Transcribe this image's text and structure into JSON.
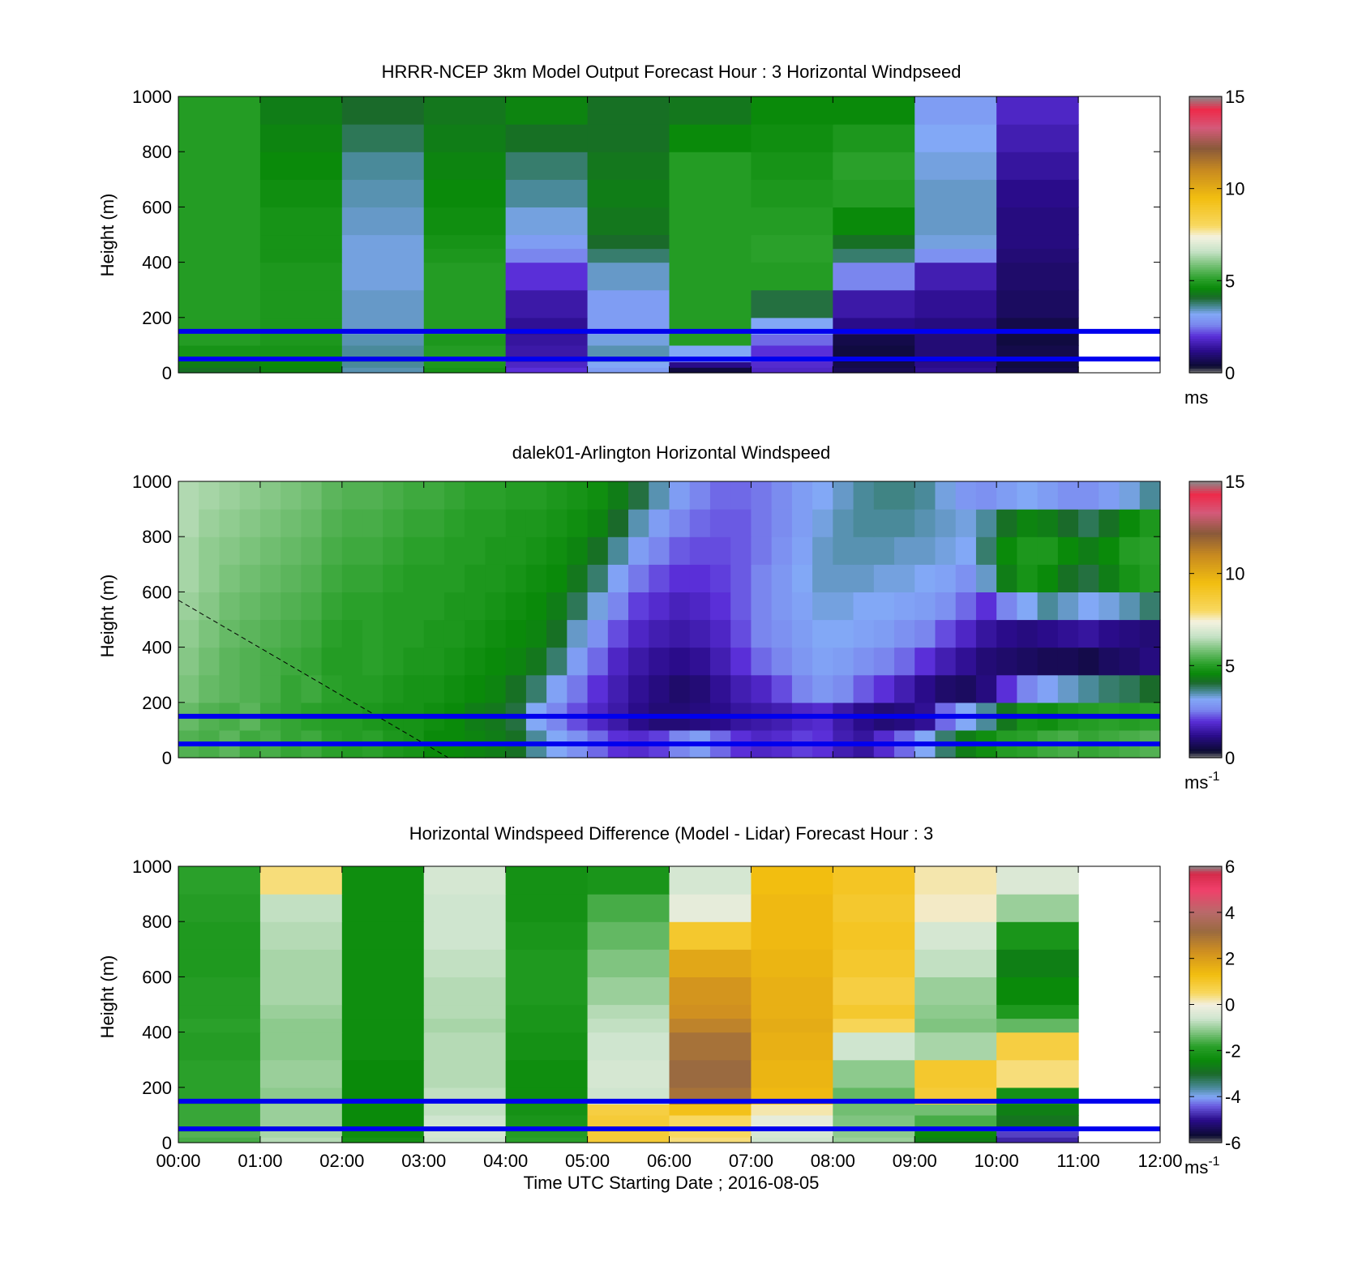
{
  "figure": {
    "xlabel": "Time UTC  Starting Date ; 2016-08-05",
    "time_ticks": [
      "00:00",
      "01:00",
      "02:00",
      "03:00",
      "04:00",
      "05:00",
      "06:00",
      "07:00",
      "08:00",
      "09:00",
      "10:00",
      "11:00",
      "12:00"
    ],
    "height_ticks": [
      "0",
      "200",
      "400",
      "600",
      "800",
      "1000"
    ],
    "reference_lines_m": [
      50,
      150
    ],
    "reference_line_color": "#0000ee"
  },
  "chart_data": [
    {
      "type": "heatmap",
      "title": "HRRR-NCEP 3km Model Output   Forecast Hour : 3 Horizontal Windpseed",
      "ylabel": "Height (m)",
      "xlim_hours": [
        0,
        12
      ],
      "ylim": [
        0,
        1000
      ],
      "colorbar": {
        "unit": "ms",
        "unit_sup": "",
        "range": [
          0,
          15
        ],
        "ticks": [
          "0",
          "5",
          "10",
          "15"
        ]
      },
      "height_levels_m": [
        0,
        20,
        40,
        60,
        100,
        140,
        200,
        300,
        400,
        450,
        500,
        600,
        700,
        800,
        900,
        1000
      ],
      "time_bins_hours": [
        0,
        1,
        2,
        3,
        4,
        5,
        6,
        7,
        8,
        9,
        10,
        11
      ],
      "bin_width_hours": 1,
      "values": [
        [
          4.2,
          4.5,
          3.5,
          4.8,
          2.0,
          3.0,
          0.5,
          1.8,
          0.7,
          1.3,
          0.6
        ],
        [
          4.4,
          4.6,
          3.6,
          4.9,
          1.8,
          3.2,
          1.2,
          1.9,
          0.6,
          1.2,
          0.5
        ],
        [
          4.6,
          4.7,
          3.7,
          5.0,
          1.6,
          3.4,
          2.6,
          2.0,
          0.5,
          1.1,
          0.6
        ],
        [
          4.8,
          4.8,
          3.6,
          5.0,
          1.5,
          3.5,
          3.2,
          2.0,
          0.5,
          1.0,
          0.6
        ],
        [
          5.0,
          4.9,
          3.5,
          4.9,
          1.4,
          3.3,
          5.0,
          2.4,
          0.6,
          1.0,
          0.5
        ],
        [
          5.0,
          4.9,
          3.4,
          5.0,
          1.3,
          3.0,
          5.0,
          3.2,
          1.2,
          1.1,
          0.6
        ],
        [
          5.0,
          4.9,
          3.4,
          5.0,
          1.5,
          3.0,
          5.0,
          4.0,
          1.5,
          1.3,
          0.8
        ],
        [
          5.0,
          4.9,
          3.3,
          5.0,
          2.0,
          3.4,
          5.0,
          5.0,
          2.6,
          1.6,
          0.9
        ],
        [
          5.0,
          4.8,
          3.3,
          4.9,
          2.6,
          3.8,
          5.0,
          5.1,
          3.8,
          2.8,
          1.0
        ],
        [
          5.0,
          4.8,
          3.3,
          4.8,
          3.0,
          4.1,
          5.0,
          5.1,
          4.2,
          3.3,
          1.1
        ],
        [
          5.0,
          4.8,
          3.4,
          4.7,
          3.3,
          4.3,
          5.0,
          5.0,
          4.6,
          3.4,
          1.1
        ],
        [
          5.0,
          4.7,
          3.5,
          4.6,
          3.6,
          4.4,
          5.0,
          4.9,
          5.0,
          3.4,
          1.2
        ],
        [
          5.0,
          4.6,
          3.6,
          4.5,
          3.8,
          4.3,
          5.0,
          4.8,
          5.1,
          3.3,
          1.4
        ],
        [
          5.0,
          4.5,
          3.9,
          4.4,
          4.2,
          4.2,
          4.6,
          4.7,
          4.9,
          3.2,
          1.6
        ],
        [
          5.0,
          4.4,
          4.1,
          4.3,
          4.5,
          4.2,
          4.3,
          4.6,
          4.6,
          3.0,
          1.8
        ]
      ],
      "empty_after_hours": 11
    },
    {
      "type": "heatmap",
      "title": "dalek01-Arlington  Horizontal Windspeed",
      "ylabel": "Height (m)",
      "xlim_hours": [
        0,
        12
      ],
      "ylim": [
        0,
        1000
      ],
      "colorbar": {
        "unit": "ms",
        "unit_sup": "-1",
        "range": [
          0,
          15
        ],
        "ticks": [
          "0",
          "5",
          "10",
          "15"
        ]
      },
      "note_values": "height x time grid",
      "time_bins_hours": [
        0,
        0.25,
        0.5,
        0.75,
        1,
        1.25,
        1.5,
        1.75,
        2,
        2.25,
        2.5,
        2.75,
        3,
        3.25,
        3.5,
        3.75,
        4,
        4.25,
        4.5,
        4.75,
        5,
        5.25,
        5.5,
        5.75,
        6,
        6.25,
        6.5,
        6.75,
        7,
        7.25,
        7.5,
        7.75,
        8,
        8.25,
        8.5,
        8.75,
        9,
        9.25,
        9.5,
        9.75,
        10,
        10.25,
        10.5,
        10.75,
        11,
        11.25,
        11.5,
        11.75
      ],
      "bin_width_hours": 0.25,
      "height_levels_m": [
        0,
        100,
        200,
        300,
        400,
        500,
        600,
        700,
        800,
        900,
        1000
      ],
      "values": [
        [
          5.5,
          5.4,
          5.6,
          5.3,
          5.4,
          5.2,
          5.3,
          5.1,
          5.0,
          5.1,
          4.9,
          4.8,
          4.6,
          4.6,
          4.5,
          4.4,
          4.2,
          3.6,
          3.2,
          2.8,
          2.4,
          2.0,
          1.9,
          2.1,
          2.6,
          3.0,
          2.4,
          2.0,
          1.8,
          1.9,
          2.1,
          2.0,
          1.6,
          1.4,
          1.9,
          2.4,
          3.2,
          3.8,
          4.4,
          4.7,
          5.0,
          5.1,
          5.3,
          5.4,
          5.2,
          5.3,
          5.4,
          5.5
        ],
        [
          5.7,
          5.5,
          5.4,
          5.6,
          5.3,
          5.2,
          5.1,
          5.0,
          5.0,
          4.9,
          4.8,
          4.8,
          4.7,
          4.6,
          4.4,
          4.3,
          4.0,
          3.2,
          2.6,
          2.2,
          1.8,
          1.5,
          1.2,
          1.0,
          1.0,
          1.1,
          1.2,
          1.4,
          1.5,
          1.6,
          1.8,
          1.9,
          1.5,
          1.2,
          1.0,
          1.1,
          1.3,
          2.4,
          3.2,
          3.6,
          4.3,
          4.8,
          4.7,
          4.9,
          5.0,
          5.1,
          5.0,
          5.1
        ],
        [
          5.9,
          5.7,
          5.6,
          5.5,
          5.4,
          5.2,
          5.3,
          5.1,
          5.0,
          5.0,
          4.9,
          4.8,
          4.8,
          4.7,
          4.6,
          4.5,
          4.2,
          3.8,
          3.1,
          2.5,
          2.0,
          1.6,
          1.3,
          1.1,
          0.9,
          1.0,
          1.3,
          1.6,
          1.8,
          2.2,
          2.6,
          2.9,
          2.7,
          2.3,
          2.0,
          1.6,
          1.2,
          0.9,
          0.8,
          1.1,
          2.0,
          2.6,
          3.1,
          3.4,
          3.6,
          3.8,
          3.9,
          4.1
        ],
        [
          6.0,
          5.8,
          5.6,
          5.5,
          5.4,
          5.3,
          5.2,
          5.0,
          5.0,
          5.1,
          5.0,
          4.9,
          4.9,
          4.8,
          4.7,
          4.6,
          4.5,
          4.3,
          3.8,
          3.0,
          2.4,
          1.8,
          1.5,
          1.3,
          1.2,
          1.3,
          1.6,
          2.0,
          2.4,
          2.6,
          2.9,
          3.1,
          3.0,
          2.8,
          2.6,
          2.4,
          2.0,
          1.6,
          1.3,
          1.0,
          0.9,
          0.8,
          0.7,
          0.7,
          0.6,
          0.8,
          0.9,
          1.1
        ],
        [
          6.1,
          5.9,
          5.7,
          5.6,
          5.5,
          5.4,
          5.3,
          5.1,
          5.0,
          5.1,
          5.0,
          5.0,
          4.9,
          4.9,
          4.8,
          4.7,
          4.6,
          4.5,
          4.2,
          3.4,
          2.8,
          2.2,
          1.8,
          1.6,
          1.5,
          1.6,
          1.8,
          2.2,
          2.6,
          2.8,
          3.0,
          3.2,
          3.2,
          3.1,
          3.0,
          2.8,
          2.6,
          2.2,
          1.8,
          1.4,
          1.2,
          1.1,
          1.2,
          1.3,
          1.4,
          1.2,
          1.1,
          1.0
        ],
        [
          6.2,
          6.0,
          5.8,
          5.7,
          5.6,
          5.5,
          5.4,
          5.2,
          5.1,
          5.1,
          5.0,
          5.0,
          5.0,
          4.9,
          4.9,
          4.8,
          4.7,
          4.6,
          4.4,
          3.9,
          3.3,
          2.6,
          2.1,
          1.9,
          1.7,
          1.8,
          2.0,
          2.3,
          2.6,
          2.9,
          3.1,
          3.3,
          3.3,
          3.2,
          3.2,
          3.1,
          3.0,
          2.8,
          2.4,
          2.0,
          2.6,
          3.2,
          3.6,
          3.4,
          3.2,
          3.3,
          3.5,
          3.8
        ],
        [
          6.3,
          6.1,
          5.9,
          5.8,
          5.7,
          5.6,
          5.5,
          5.3,
          5.2,
          5.2,
          5.1,
          5.0,
          5.0,
          5.0,
          4.9,
          4.9,
          4.8,
          4.7,
          4.6,
          4.3,
          3.8,
          3.1,
          2.5,
          2.2,
          2.0,
          2.0,
          2.1,
          2.3,
          2.6,
          2.9,
          3.2,
          3.4,
          3.4,
          3.4,
          3.3,
          3.3,
          3.2,
          3.1,
          2.8,
          3.4,
          4.4,
          4.8,
          4.6,
          4.2,
          4.0,
          4.4,
          4.8,
          5.0
        ],
        [
          6.3,
          6.1,
          6.0,
          5.9,
          5.8,
          5.7,
          5.6,
          5.4,
          5.3,
          5.3,
          5.2,
          5.1,
          5.1,
          5.0,
          5.0,
          4.9,
          4.9,
          4.8,
          4.7,
          4.5,
          4.2,
          3.6,
          3.0,
          2.6,
          2.3,
          2.2,
          2.2,
          2.3,
          2.5,
          2.8,
          3.1,
          3.4,
          3.5,
          3.5,
          3.5,
          3.4,
          3.4,
          3.3,
          3.2,
          3.8,
          4.6,
          4.9,
          4.9,
          4.6,
          4.4,
          4.6,
          5.0,
          5.1
        ],
        [
          6.4,
          6.2,
          6.1,
          6.0,
          5.9,
          5.8,
          5.7,
          5.5,
          5.4,
          5.4,
          5.3,
          5.2,
          5.2,
          5.1,
          5.0,
          5.0,
          4.9,
          4.9,
          4.8,
          4.7,
          4.5,
          4.1,
          3.5,
          3.0,
          2.6,
          2.4,
          2.3,
          2.3,
          2.5,
          2.7,
          3.0,
          3.3,
          3.5,
          3.6,
          3.6,
          3.6,
          3.5,
          3.4,
          3.3,
          3.6,
          4.2,
          4.5,
          4.4,
          4.1,
          3.9,
          4.2,
          4.6,
          4.9
        ],
        [
          6.4,
          6.3,
          6.2,
          6.1,
          6.0,
          5.9,
          5.8,
          5.6,
          5.5,
          5.5,
          5.4,
          5.3,
          5.3,
          5.2,
          5.1,
          5.1,
          5.0,
          5.0,
          4.9,
          4.8,
          4.7,
          4.4,
          4.0,
          3.5,
          3.0,
          2.6,
          2.4,
          2.4,
          2.5,
          2.7,
          3.0,
          3.2,
          3.4,
          3.6,
          3.7,
          3.7,
          3.6,
          3.3,
          2.9,
          2.8,
          3.0,
          3.2,
          3.0,
          2.8,
          2.8,
          3.0,
          3.3,
          3.6
        ],
        [
          6.5,
          6.3,
          6.2,
          6.1,
          6.0,
          5.9,
          5.8,
          5.7,
          5.6,
          5.5,
          5.4,
          5.4,
          5.3,
          5.3,
          5.2,
          5.1,
          5.1,
          5.0,
          5.0,
          4.9,
          4.8,
          4.6,
          4.3,
          3.9,
          3.4,
          2.9,
          2.6,
          2.5,
          2.5,
          2.7,
          2.9,
          3.2,
          3.4,
          3.6,
          3.7,
          3.7,
          3.5,
          3.0,
          2.6,
          2.3,
          2.2,
          2.2,
          2.1,
          2.0,
          2.0,
          2.2,
          2.5,
          2.8
        ]
      ],
      "dashed_line": {
        "from": [
          0,
          570
        ],
        "to": [
          3.3,
          0
        ]
      },
      "empty_after_hours": 11.75
    },
    {
      "type": "heatmap",
      "title": "Horizontal Windspeed Difference (Model - Lidar) Forecast Hour : 3",
      "ylabel": "Height (m)",
      "xlim_hours": [
        0,
        12
      ],
      "ylim": [
        0,
        1000
      ],
      "colorbar": {
        "unit": "ms",
        "unit_sup": "-1",
        "range": [
          -6,
          6
        ],
        "ticks": [
          "-6",
          "-4",
          "-2",
          "0",
          "2",
          "4",
          "6"
        ]
      },
      "height_levels_m": [
        0,
        20,
        40,
        60,
        100,
        140,
        200,
        300,
        400,
        450,
        500,
        600,
        700,
        800,
        900,
        1000
      ],
      "time_bins_hours": [
        0,
        1,
        2,
        3,
        4,
        5,
        6,
        7,
        8,
        9,
        10,
        11
      ],
      "bin_width_hours": 1,
      "values": [
        [
          -1.6,
          -0.8,
          -2.2,
          -0.6,
          -1.8,
          0.9,
          0.4,
          -0.6,
          -1.0,
          -2.6,
          -4.8
        ],
        [
          -1.5,
          -0.9,
          -2.3,
          -0.5,
          -1.9,
          0.9,
          0.5,
          -0.5,
          -1.1,
          -2.4,
          -4.6
        ],
        [
          -1.6,
          -0.9,
          -2.3,
          -0.6,
          -2.0,
          1.0,
          0.5,
          -0.3,
          -1.1,
          -2.2,
          -4.5
        ],
        [
          -1.7,
          -1.0,
          -2.4,
          -0.6,
          -2.1,
          0.9,
          0.5,
          -0.2,
          -1.2,
          -1.6,
          -2.8
        ],
        [
          -1.7,
          -1.0,
          -2.4,
          -0.7,
          -2.2,
          0.8,
          1.2,
          0.2,
          -1.3,
          -1.3,
          -2.6
        ],
        [
          -1.8,
          -1.1,
          -2.4,
          -0.7,
          -2.3,
          -0.6,
          3.0,
          1.4,
          -1.4,
          0.9,
          -2.2
        ],
        [
          -1.8,
          -1.0,
          -2.4,
          -0.8,
          -2.3,
          -0.5,
          3.2,
          1.5,
          -1.1,
          1.0,
          0.4
        ],
        [
          -1.9,
          -1.1,
          -2.3,
          -0.8,
          -2.2,
          -0.6,
          3.0,
          1.6,
          -0.6,
          -0.9,
          0.8
        ],
        [
          -1.8,
          -1.1,
          -2.3,
          -0.9,
          -2.1,
          -0.7,
          2.6,
          1.7,
          0.6,
          -1.2,
          -1.4
        ],
        [
          -1.9,
          -1.0,
          -2.3,
          -0.8,
          -2.1,
          -0.8,
          2.3,
          1.6,
          1.0,
          -1.1,
          -2.0
        ],
        [
          -1.9,
          -0.9,
          -2.3,
          -0.8,
          -2.0,
          -1.0,
          2.2,
          1.6,
          0.8,
          -1.0,
          -2.4
        ],
        [
          -2.0,
          -0.9,
          -2.3,
          -0.7,
          -2.0,
          -1.2,
          1.8,
          1.5,
          1.0,
          -0.7,
          -2.6
        ],
        [
          -2.0,
          -0.8,
          -2.3,
          -0.6,
          -2.1,
          -1.4,
          1.0,
          1.4,
          1.1,
          -0.5,
          -2.1
        ],
        [
          -1.9,
          -0.7,
          -2.3,
          -0.6,
          -2.2,
          -1.6,
          -0.2,
          1.4,
          1.0,
          0.1,
          -1.0
        ],
        [
          -1.8,
          0.4,
          -2.3,
          -0.5,
          -2.2,
          -2.1,
          -0.5,
          1.3,
          1.1,
          0.2,
          -0.4
        ]
      ],
      "empty_after_hours": 11
    }
  ]
}
